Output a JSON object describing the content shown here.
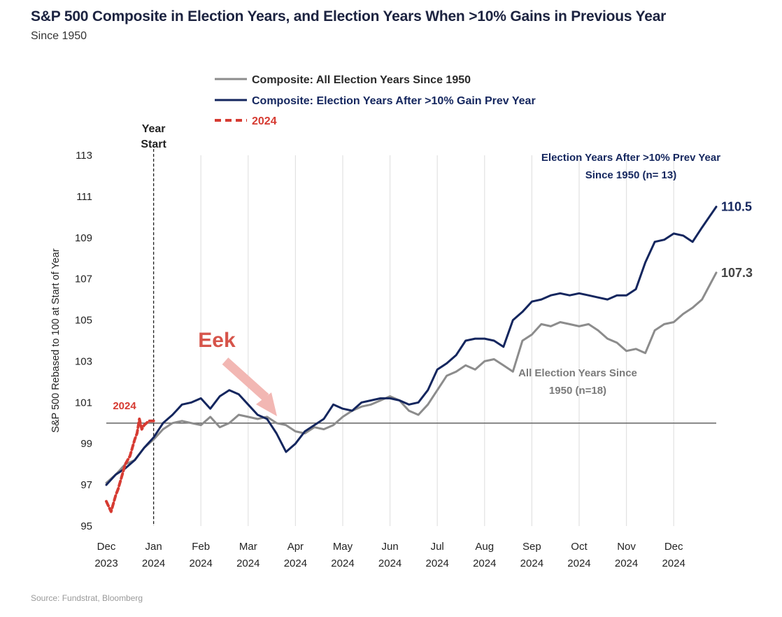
{
  "header": {
    "title": "S&P 500 Composite in Election Years, and Election Years When >10% Gains in Previous Year",
    "subtitle": "Since 1950"
  },
  "footer": {
    "source": "Source: Fundstrat, Bloomberg"
  },
  "chart_data": {
    "type": "line",
    "ylabel": "S&P 500 Rebased to 100 at Start of Year",
    "ylim": [
      95,
      113
    ],
    "yticks": [
      95,
      97,
      99,
      101,
      103,
      105,
      107,
      109,
      111,
      113
    ],
    "xlim": [
      -1,
      11.9
    ],
    "x_months": [
      {
        "month": "Dec",
        "year": "2023"
      },
      {
        "month": "Jan",
        "year": "2024"
      },
      {
        "month": "Feb",
        "year": "2024"
      },
      {
        "month": "Mar",
        "year": "2024"
      },
      {
        "month": "Apr",
        "year": "2024"
      },
      {
        "month": "May",
        "year": "2024"
      },
      {
        "month": "Jun",
        "year": "2024"
      },
      {
        "month": "Jul",
        "year": "2024"
      },
      {
        "month": "Aug",
        "year": "2024"
      },
      {
        "month": "Sep",
        "year": "2024"
      },
      {
        "month": "Oct",
        "year": "2024"
      },
      {
        "month": "Nov",
        "year": "2024"
      },
      {
        "month": "Dec",
        "year": "2024"
      }
    ],
    "grid": true,
    "legend_position": "top",
    "legend": [
      {
        "label": "Composite: All Election Years Since 1950",
        "color": "#8c8c8c",
        "style": "solid"
      },
      {
        "label": "Composite: Election Years After >10% Gain Prev Year",
        "color": "#14265e",
        "style": "solid"
      },
      {
        "label": "2024",
        "color": "#d63b32",
        "style": "dashed"
      }
    ],
    "series": [
      {
        "name": "Composite: All Election Years Since 1950",
        "color": "#8c8c8c",
        "x": [
          -1.0,
          -0.8,
          -0.6,
          -0.4,
          -0.2,
          0.0,
          0.2,
          0.4,
          0.6,
          0.8,
          1.0,
          1.2,
          1.4,
          1.6,
          1.8,
          2.0,
          2.2,
          2.4,
          2.6,
          2.8,
          3.0,
          3.2,
          3.4,
          3.6,
          3.8,
          4.0,
          4.2,
          4.4,
          4.6,
          4.8,
          5.0,
          5.2,
          5.4,
          5.6,
          5.8,
          6.0,
          6.2,
          6.4,
          6.6,
          6.8,
          7.0,
          7.2,
          7.4,
          7.6,
          7.8,
          8.0,
          8.2,
          8.4,
          8.6,
          8.8,
          9.0,
          9.2,
          9.4,
          9.6,
          9.8,
          10.0,
          10.2,
          10.4,
          10.6,
          10.8,
          11.0,
          11.2,
          11.4,
          11.6,
          11.9
        ],
        "y": [
          97.1,
          97.5,
          98.0,
          98.2,
          98.8,
          99.2,
          99.7,
          100.0,
          100.1,
          100.0,
          99.9,
          100.3,
          99.8,
          100.0,
          100.4,
          100.3,
          100.2,
          100.3,
          100.0,
          99.9,
          99.6,
          99.5,
          99.8,
          99.7,
          99.9,
          100.3,
          100.6,
          100.8,
          100.9,
          101.1,
          101.3,
          101.1,
          100.6,
          100.4,
          100.9,
          101.6,
          102.3,
          102.5,
          102.8,
          102.6,
          103.0,
          103.1,
          102.8,
          102.5,
          104.0,
          104.3,
          104.8,
          104.7,
          104.9,
          104.8,
          104.7,
          104.8,
          104.5,
          104.1,
          103.9,
          103.5,
          103.6,
          103.4,
          104.5,
          104.8,
          104.9,
          105.3,
          105.6,
          106.0,
          107.3
        ]
      },
      {
        "name": "Composite: Election Years After >10% Gain Prev Year",
        "color": "#14265e",
        "x": [
          -1.0,
          -0.8,
          -0.6,
          -0.4,
          -0.2,
          0.0,
          0.2,
          0.4,
          0.6,
          0.8,
          1.0,
          1.2,
          1.4,
          1.6,
          1.8,
          2.0,
          2.2,
          2.4,
          2.6,
          2.8,
          3.0,
          3.2,
          3.4,
          3.6,
          3.8,
          4.0,
          4.2,
          4.4,
          4.6,
          4.8,
          5.0,
          5.2,
          5.4,
          5.6,
          5.8,
          6.0,
          6.2,
          6.4,
          6.6,
          6.8,
          7.0,
          7.2,
          7.4,
          7.6,
          7.8,
          8.0,
          8.2,
          8.4,
          8.6,
          8.8,
          9.0,
          9.2,
          9.4,
          9.6,
          9.8,
          10.0,
          10.2,
          10.4,
          10.6,
          10.8,
          11.0,
          11.2,
          11.4,
          11.6,
          11.9
        ],
        "y": [
          97.0,
          97.5,
          97.8,
          98.2,
          98.8,
          99.3,
          100.0,
          100.4,
          100.9,
          101.0,
          101.2,
          100.7,
          101.3,
          101.6,
          101.4,
          100.9,
          100.4,
          100.2,
          99.5,
          98.6,
          99.0,
          99.6,
          99.9,
          100.2,
          100.9,
          100.7,
          100.6,
          101.0,
          101.1,
          101.2,
          101.2,
          101.1,
          100.9,
          101.0,
          101.6,
          102.6,
          102.9,
          103.3,
          104.0,
          104.1,
          104.1,
          104.0,
          103.7,
          105.0,
          105.4,
          105.9,
          106.0,
          106.2,
          106.3,
          106.2,
          106.3,
          106.2,
          106.1,
          106.0,
          106.2,
          106.2,
          106.5,
          107.8,
          108.8,
          108.9,
          109.2,
          109.1,
          108.8,
          109.5,
          110.5
        ]
      },
      {
        "name": "2024",
        "color": "#d63b32",
        "x": [
          -1.0,
          -0.9,
          -0.8,
          -0.75,
          -0.7,
          -0.65,
          -0.6,
          -0.5,
          -0.4,
          -0.35,
          -0.3,
          -0.25,
          -0.2,
          -0.1,
          0.0
        ],
        "y": [
          96.2,
          95.7,
          96.5,
          96.8,
          97.2,
          97.6,
          98.0,
          98.4,
          99.2,
          99.5,
          100.2,
          99.7,
          99.9,
          100.1,
          100.1
        ]
      }
    ],
    "annotations": {
      "year_start": "Year Start",
      "eek": "Eek",
      "label_2024": "2024",
      "end_label_top": "110.5",
      "end_label_bottom": "107.3",
      "top_series_note_line1": "Election Years After >10% Prev Year",
      "top_series_note_line2": "Since 1950 (n= 13)",
      "all_series_note_line1": "All Election Years Since",
      "all_series_note_line2": "1950 (n=18)"
    }
  }
}
